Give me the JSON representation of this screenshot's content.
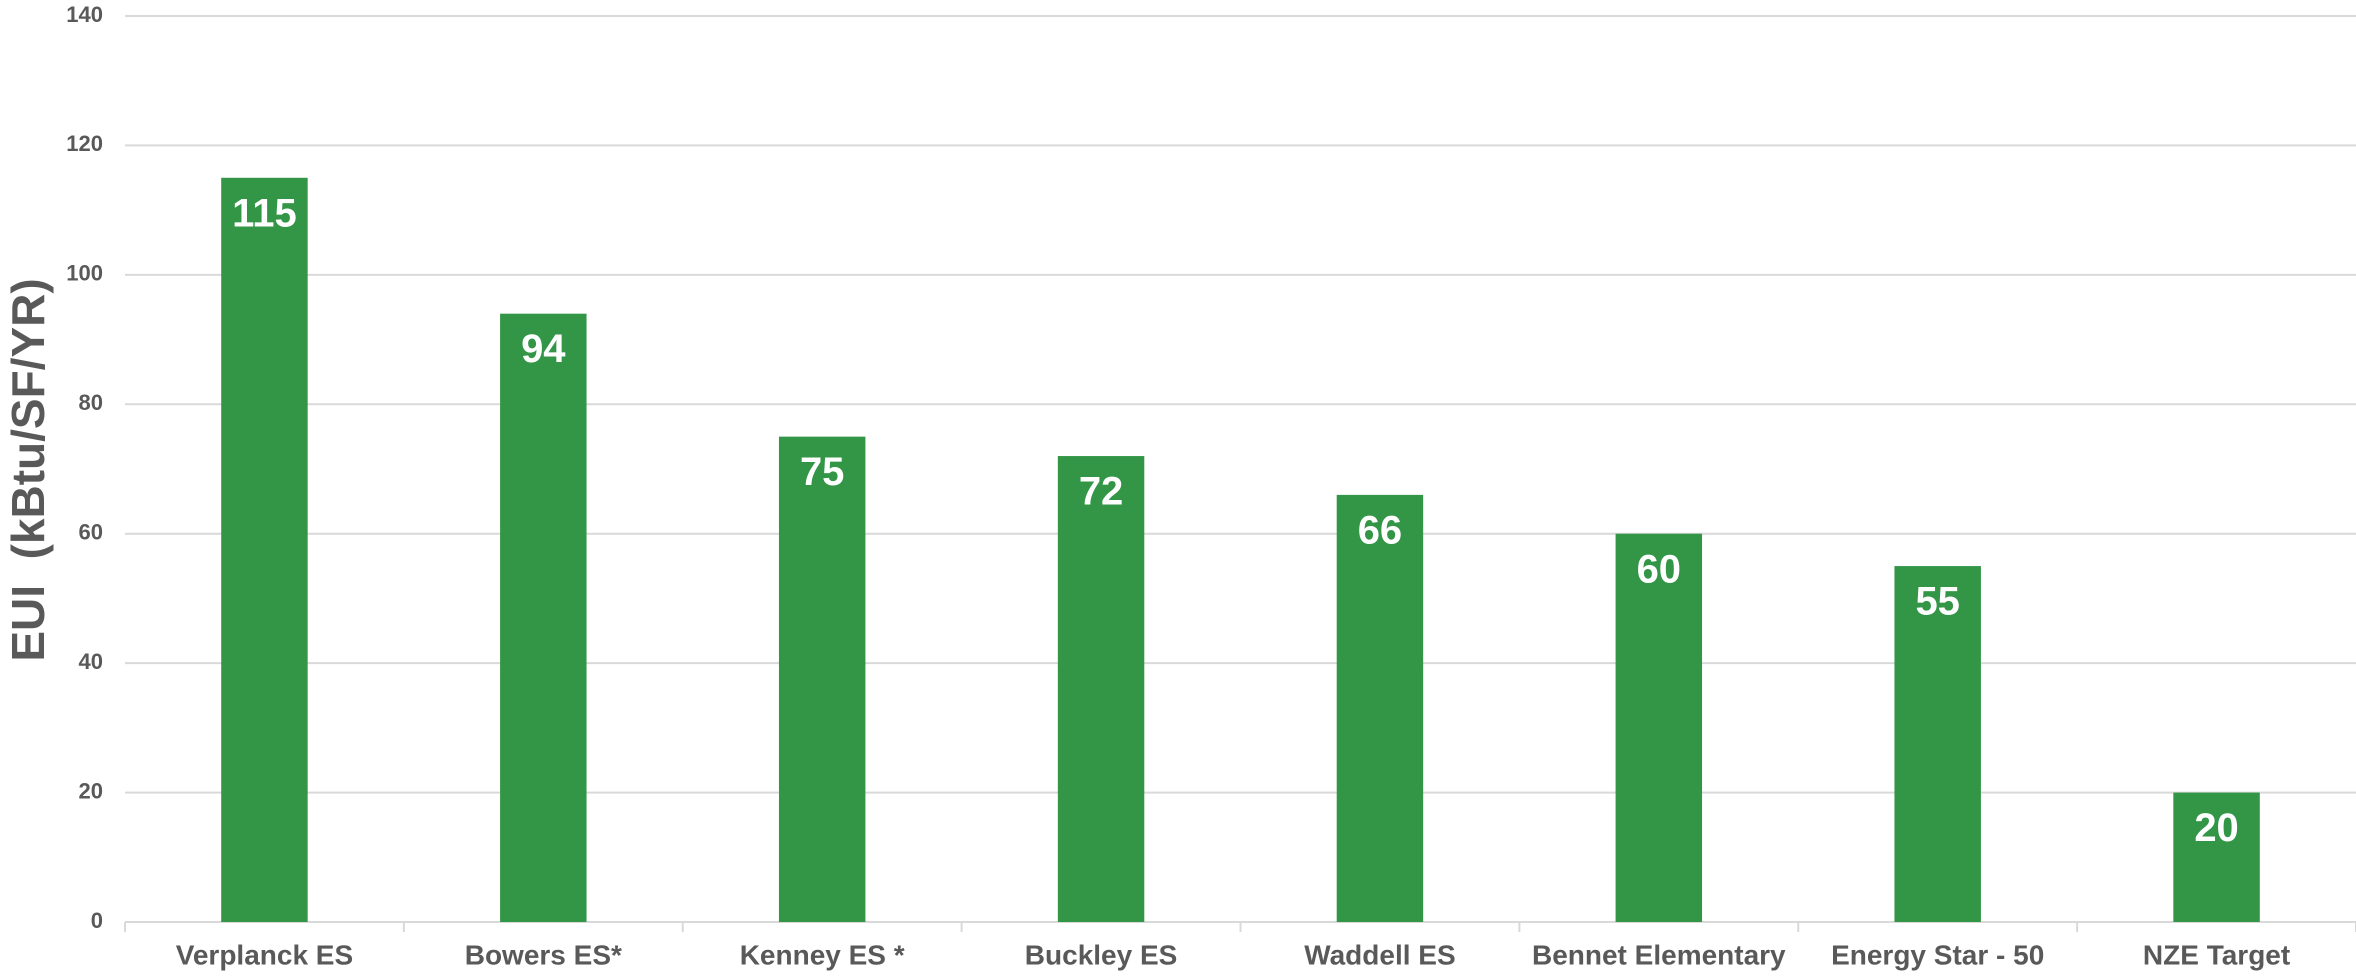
{
  "chart_data": {
    "type": "bar",
    "y_label": "EUI  (kBtu/SF/YR)",
    "categories": [
      "Verplanck ES",
      "Bowers ES*",
      "Kenney ES *",
      "Buckley ES",
      "Waddell ES",
      "Bennet Elementary",
      "Energy Star - 50",
      "NZE Target"
    ],
    "values": [
      115,
      94,
      75,
      72,
      66,
      60,
      55,
      20
    ],
    "color": "#339546",
    "ylim": [
      0,
      140
    ],
    "yticks": [
      0,
      20,
      40,
      60,
      80,
      100,
      120,
      140
    ],
    "grid": true
  }
}
